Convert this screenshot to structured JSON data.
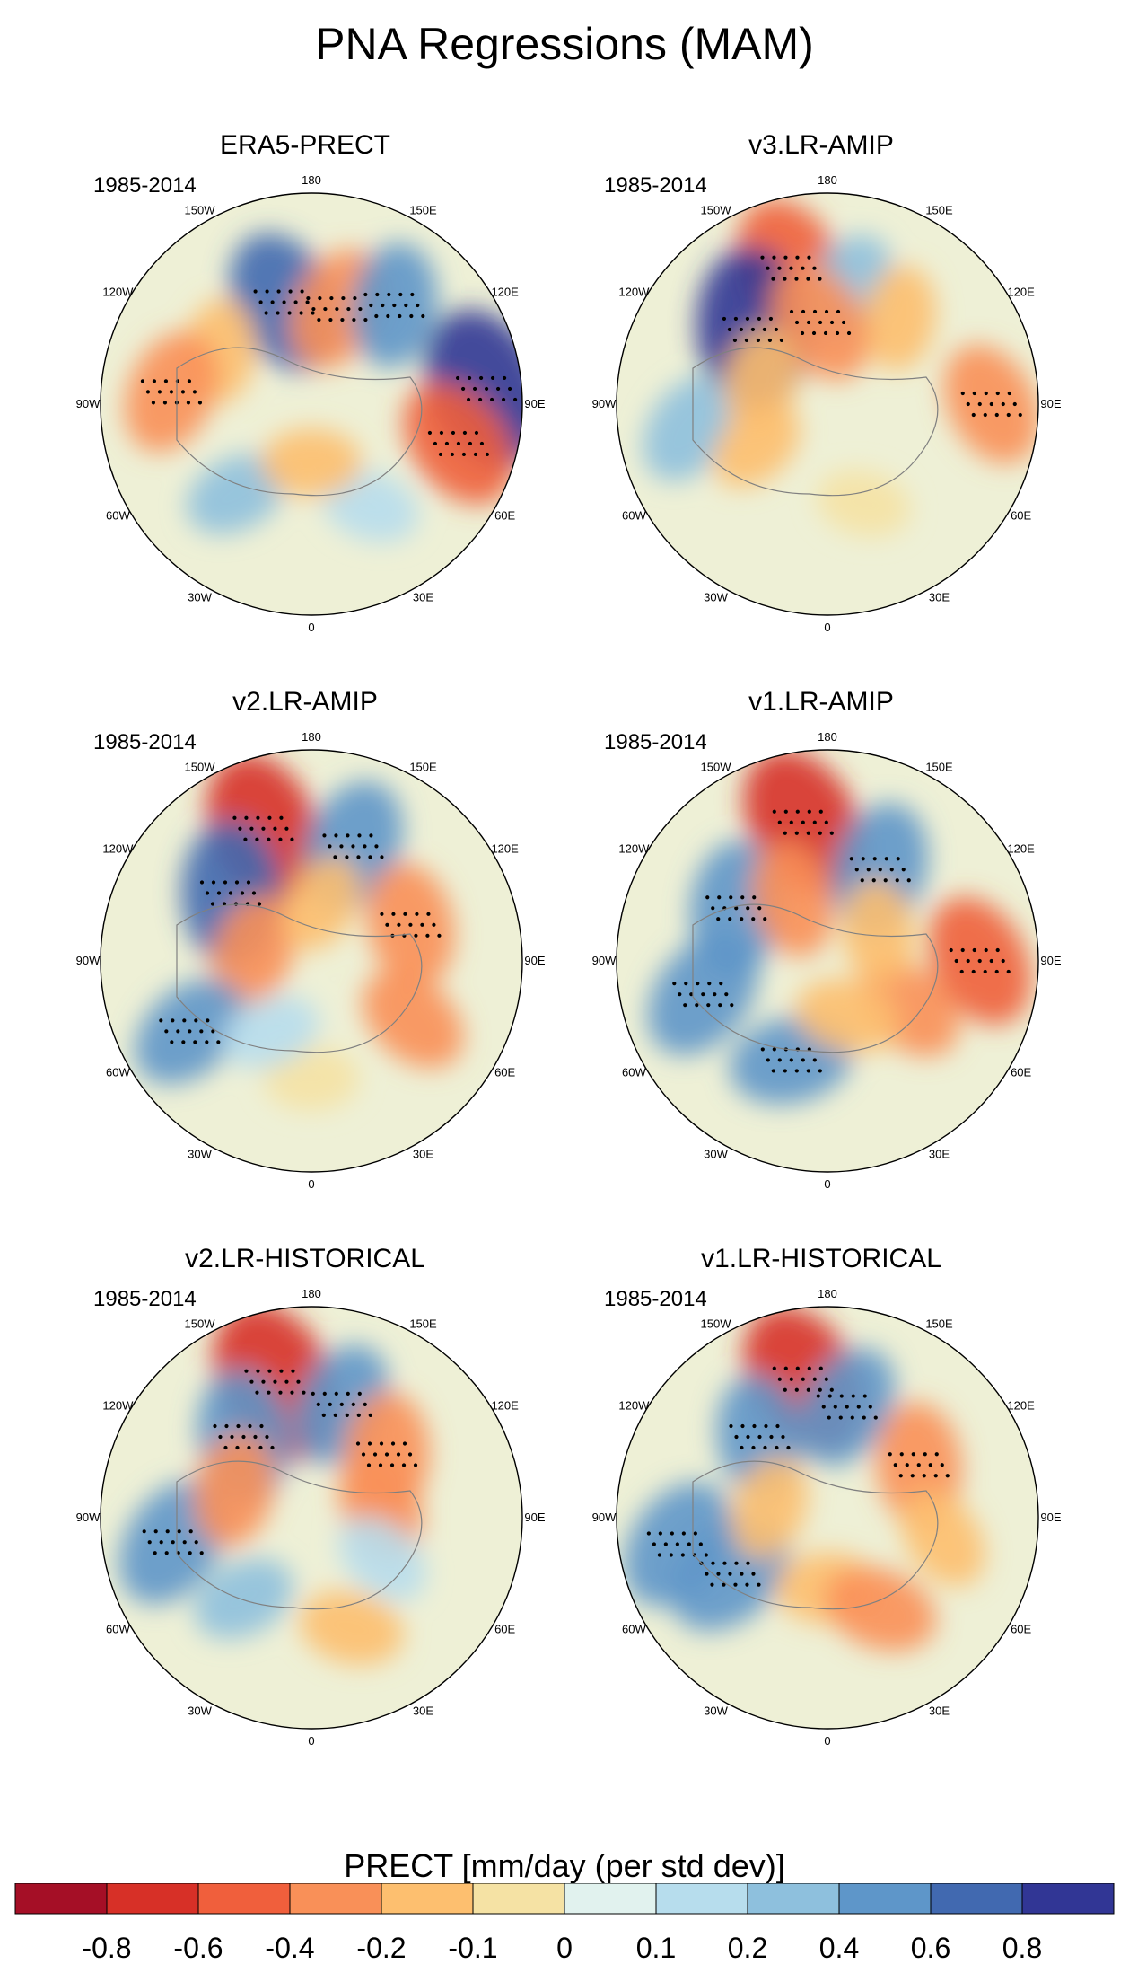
{
  "figure": {
    "title": "PNA Regressions (MAM)"
  },
  "panels": [
    {
      "title": "ERA5-PRECT",
      "period": "1985-2014"
    },
    {
      "title": "v3.LR-AMIP",
      "period": "1985-2014"
    },
    {
      "title": "v2.LR-AMIP",
      "period": "1985-2014"
    },
    {
      "title": "v1.LR-AMIP",
      "period": "1985-2014"
    },
    {
      "title": "v2.LR-HISTORICAL",
      "period": "1985-2014"
    },
    {
      "title": "v1.LR-HISTORICAL",
      "period": "1985-2014"
    }
  ],
  "longitude_labels": [
    "180",
    "150E",
    "120E",
    "90E",
    "60E",
    "30E",
    "0",
    "30W",
    "60W",
    "90W",
    "120W",
    "150W"
  ],
  "colorbar": {
    "title": "PRECT [mm/day (per std dev)]",
    "labels": [
      "-0.8",
      "-0.6",
      "-0.4",
      "-0.2",
      "-0.1",
      "0",
      "0.1",
      "0.2",
      "0.4",
      "0.6",
      "0.8"
    ],
    "colors": [
      "#a50f26",
      "#d73027",
      "#f05f3c",
      "#f99058",
      "#fdbf6f",
      "#f5e2a4",
      "#e1f2ee",
      "#b7dded",
      "#8ec0dd",
      "#5e96c9",
      "#4169b0",
      "#313695"
    ]
  },
  "chart_data": {
    "type": "map",
    "projection": "north-polar-stereographic",
    "variable": "PRECT regression on PNA index",
    "units": "mm/day (per std dev)",
    "season": "MAM",
    "period": "1985-2014",
    "contour_levels": [
      -0.8,
      -0.6,
      -0.4,
      -0.2,
      -0.1,
      0,
      0.1,
      0.2,
      0.4,
      0.6,
      0.8
    ],
    "features": {
      "ERA5-PRECT": [
        {
          "lon": -165,
          "lat": 45,
          "value": 0.6
        },
        {
          "lon": 165,
          "lat": 48,
          "value": -0.4
        },
        {
          "lon": -120,
          "lat": 45,
          "value": -0.2
        },
        {
          "lon": -95,
          "lat": 30,
          "value": -0.4
        },
        {
          "lon": 95,
          "lat": 15,
          "value": 0.8
        },
        {
          "lon": 75,
          "lat": 25,
          "value": -0.5
        },
        {
          "lon": 140,
          "lat": 35,
          "value": 0.4
        },
        {
          "lon": -40,
          "lat": 40,
          "value": 0.2
        },
        {
          "lon": 30,
          "lat": 40,
          "value": 0.15
        },
        {
          "lon": 0,
          "lat": 65,
          "value": -0.15
        }
      ],
      "v3.LR-AMIP": [
        {
          "lon": -165,
          "lat": 30,
          "value": -0.6
        },
        {
          "lon": -135,
          "lat": 45,
          "value": 0.8
        },
        {
          "lon": 170,
          "lat": 40,
          "value": 0.3
        },
        {
          "lon": 140,
          "lat": 42,
          "value": -0.2
        },
        {
          "lon": -175,
          "lat": 55,
          "value": -0.4
        },
        {
          "lon": 90,
          "lat": 20,
          "value": -0.4
        },
        {
          "lon": -80,
          "lat": 30,
          "value": 0.3
        },
        {
          "lon": -60,
          "lat": 55,
          "value": -0.15
        },
        {
          "lon": 20,
          "lat": 45,
          "value": -0.1
        },
        {
          "lon": -110,
          "lat": 60,
          "value": -0.2
        }
      ],
      "v2.LR-AMIP": [
        {
          "lon": -160,
          "lat": 30,
          "value": -0.7
        },
        {
          "lon": -130,
          "lat": 45,
          "value": 0.6
        },
        {
          "lon": 160,
          "lat": 38,
          "value": 0.5
        },
        {
          "lon": 110,
          "lat": 45,
          "value": -0.4
        },
        {
          "lon": -100,
          "lat": 65,
          "value": -0.3
        },
        {
          "lon": -60,
          "lat": 30,
          "value": 0.4
        },
        {
          "lon": 60,
          "lat": 40,
          "value": -0.3
        },
        {
          "lon": 0,
          "lat": 40,
          "value": -0.1
        },
        {
          "lon": 170,
          "lat": 65,
          "value": -0.15
        },
        {
          "lon": -30,
          "lat": 55,
          "value": 0.15
        }
      ],
      "v1.LR-AMIP": [
        {
          "lon": -170,
          "lat": 30,
          "value": -0.7
        },
        {
          "lon": -120,
          "lat": 45,
          "value": 0.5
        },
        {
          "lon": 150,
          "lat": 45,
          "value": 0.5
        },
        {
          "lon": 90,
          "lat": 25,
          "value": -0.5
        },
        {
          "lon": -75,
          "lat": 35,
          "value": 0.5
        },
        {
          "lon": -20,
          "lat": 45,
          "value": 0.4
        },
        {
          "lon": -150,
          "lat": 60,
          "value": -0.3
        },
        {
          "lon": 60,
          "lat": 50,
          "value": -0.3
        },
        {
          "lon": 20,
          "lat": 65,
          "value": -0.2
        },
        {
          "lon": 120,
          "lat": 65,
          "value": -0.2
        }
      ],
      "v2.LR-HISTORICAL": [
        {
          "lon": -165,
          "lat": 30,
          "value": -0.8
        },
        {
          "lon": -140,
          "lat": 45,
          "value": 0.5
        },
        {
          "lon": 165,
          "lat": 40,
          "value": 0.4
        },
        {
          "lon": 130,
          "lat": 48,
          "value": -0.4
        },
        {
          "lon": 100,
          "lat": 60,
          "value": -0.3
        },
        {
          "lon": -80,
          "lat": 30,
          "value": 0.5
        },
        {
          "lon": -110,
          "lat": 55,
          "value": -0.3
        },
        {
          "lon": 20,
          "lat": 40,
          "value": -0.2
        },
        {
          "lon": 60,
          "lat": 55,
          "value": 0.15
        },
        {
          "lon": -40,
          "lat": 45,
          "value": 0.2
        }
      ],
      "v1.LR-HISTORICAL": [
        {
          "lon": -170,
          "lat": 30,
          "value": -0.7
        },
        {
          "lon": -140,
          "lat": 45,
          "value": 0.4
        },
        {
          "lon": 170,
          "lat": 42,
          "value": 0.4
        },
        {
          "lon": 120,
          "lat": 45,
          "value": -0.4
        },
        {
          "lon": -80,
          "lat": 25,
          "value": 0.5
        },
        {
          "lon": -60,
          "lat": 42,
          "value": 0.5
        },
        {
          "lon": 0,
          "lat": 60,
          "value": -0.2
        },
        {
          "lon": 30,
          "lat": 45,
          "value": -0.3
        },
        {
          "lon": -100,
          "lat": 65,
          "value": -0.2
        },
        {
          "lon": 80,
          "lat": 40,
          "value": -0.2
        }
      ]
    }
  }
}
